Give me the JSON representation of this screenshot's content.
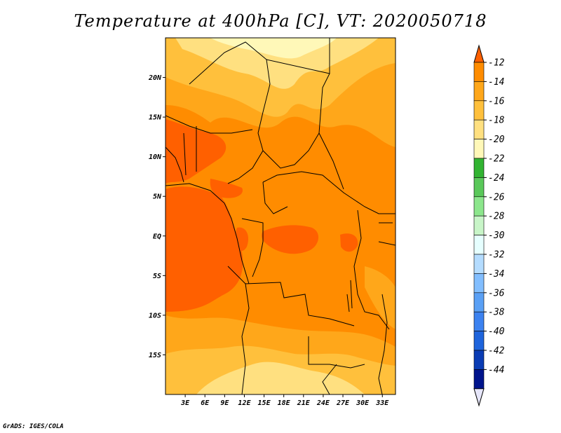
{
  "title": "Temperature at 400hPa [C], VT: 2020050718",
  "credit": "GrADS: IGES/COLA",
  "map": {
    "lat_labels": [
      "20N",
      "15N",
      "10N",
      "5N",
      "EQ",
      "5S",
      "10S",
      "15S"
    ],
    "lon_labels": [
      "3E",
      "6E",
      "9E",
      "12E",
      "15E",
      "18E",
      "21E",
      "24E",
      "27E",
      "30E",
      "33E"
    ],
    "lon_range": [
      0,
      35
    ],
    "lat_range": [
      -20,
      25
    ]
  },
  "colorbar": {
    "labels": [
      "-12",
      "-14",
      "-16",
      "-18",
      "-20",
      "-22",
      "-24",
      "-26",
      "-28",
      "-30",
      "-32",
      "-34",
      "-36",
      "-38",
      "-40",
      "-42",
      "-44"
    ],
    "colors": [
      "#ff6000",
      "#ff8c00",
      "#ffa71a",
      "#ffc03c",
      "#ffe080",
      "#fff8b8",
      "#32b432",
      "#5ac85a",
      "#8ce68c",
      "#c8f5c8",
      "#e6ffff",
      "#b4dcff",
      "#82beff",
      "#5aa0f5",
      "#3c82f0",
      "#1e64dc",
      "#0a3cb4",
      "#00148c",
      "#e6e6fa"
    ]
  }
}
